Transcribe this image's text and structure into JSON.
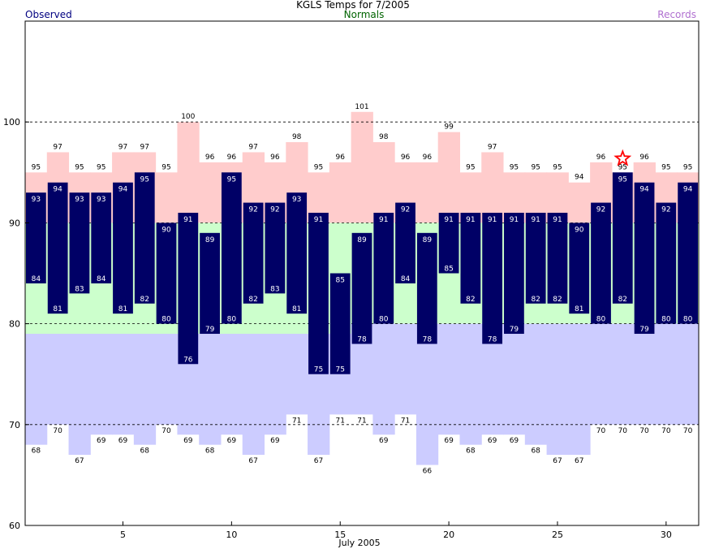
{
  "header": {
    "title": "KGLS Temps for 7/2005",
    "observed_label": "Observed",
    "normals_label": "Normals",
    "records_label": "Records"
  },
  "colors": {
    "observed": "#000066",
    "normals": "#ccffcc",
    "record_high": "#ffcccc",
    "record_low": "#ccccff",
    "record_marker": "#ff0000"
  },
  "chart_data": {
    "type": "bar",
    "xlabel": "July 2005",
    "ylabel": "",
    "ylim": [
      60,
      110
    ],
    "xlim": [
      0.5,
      31.5
    ],
    "y_ticks": [
      60,
      70,
      80,
      90,
      100
    ],
    "x_ticks": [
      5,
      10,
      15,
      20,
      25,
      30
    ],
    "gridlines_dashed": [
      70,
      80,
      90,
      100
    ],
    "days": [
      1,
      2,
      3,
      4,
      5,
      6,
      7,
      8,
      9,
      10,
      11,
      12,
      13,
      14,
      15,
      16,
      17,
      18,
      19,
      20,
      21,
      22,
      23,
      24,
      25,
      26,
      27,
      28,
      29,
      30,
      31
    ],
    "series": [
      {
        "name": "Observed",
        "high": [
          93,
          94,
          93,
          93,
          94,
          95,
          90,
          91,
          89,
          95,
          92,
          92,
          93,
          91,
          85,
          89,
          91,
          92,
          89,
          91,
          91,
          91,
          91,
          91,
          91,
          90,
          92,
          95,
          94,
          92,
          94
        ],
        "low": [
          84,
          81,
          83,
          84,
          81,
          82,
          80,
          76,
          79,
          80,
          82,
          83,
          81,
          75,
          75,
          78,
          80,
          84,
          78,
          85,
          82,
          78,
          79,
          82,
          82,
          81,
          80,
          82,
          79,
          80,
          80
        ]
      },
      {
        "name": "Normals",
        "high": [
          90,
          90,
          90,
          90,
          90,
          90,
          90,
          90,
          90,
          90,
          90,
          90,
          90,
          90,
          90,
          90,
          90,
          90,
          90,
          90,
          90,
          90,
          90,
          90,
          90,
          90,
          90,
          90,
          90,
          90,
          90
        ],
        "low": [
          79,
          79,
          79,
          79,
          79,
          79,
          79,
          79,
          79,
          79,
          79,
          79,
          79,
          79,
          79,
          80,
          80,
          80,
          80,
          80,
          80,
          80,
          80,
          80,
          80,
          80,
          80,
          80,
          80,
          80,
          80
        ]
      },
      {
        "name": "Records",
        "high": [
          95,
          97,
          95,
          95,
          97,
          97,
          95,
          100,
          96,
          96,
          97,
          96,
          98,
          95,
          96,
          101,
          98,
          96,
          96,
          99,
          95,
          97,
          95,
          95,
          95,
          94,
          96,
          95,
          96,
          95,
          95
        ],
        "low": [
          68,
          70,
          67,
          69,
          69,
          68,
          70,
          69,
          68,
          69,
          67,
          69,
          71,
          67,
          71,
          71,
          69,
          71,
          66,
          69,
          68,
          69,
          69,
          68,
          67,
          67,
          70,
          70,
          70,
          70,
          70
        ]
      }
    ],
    "record_set_day": 28
  }
}
